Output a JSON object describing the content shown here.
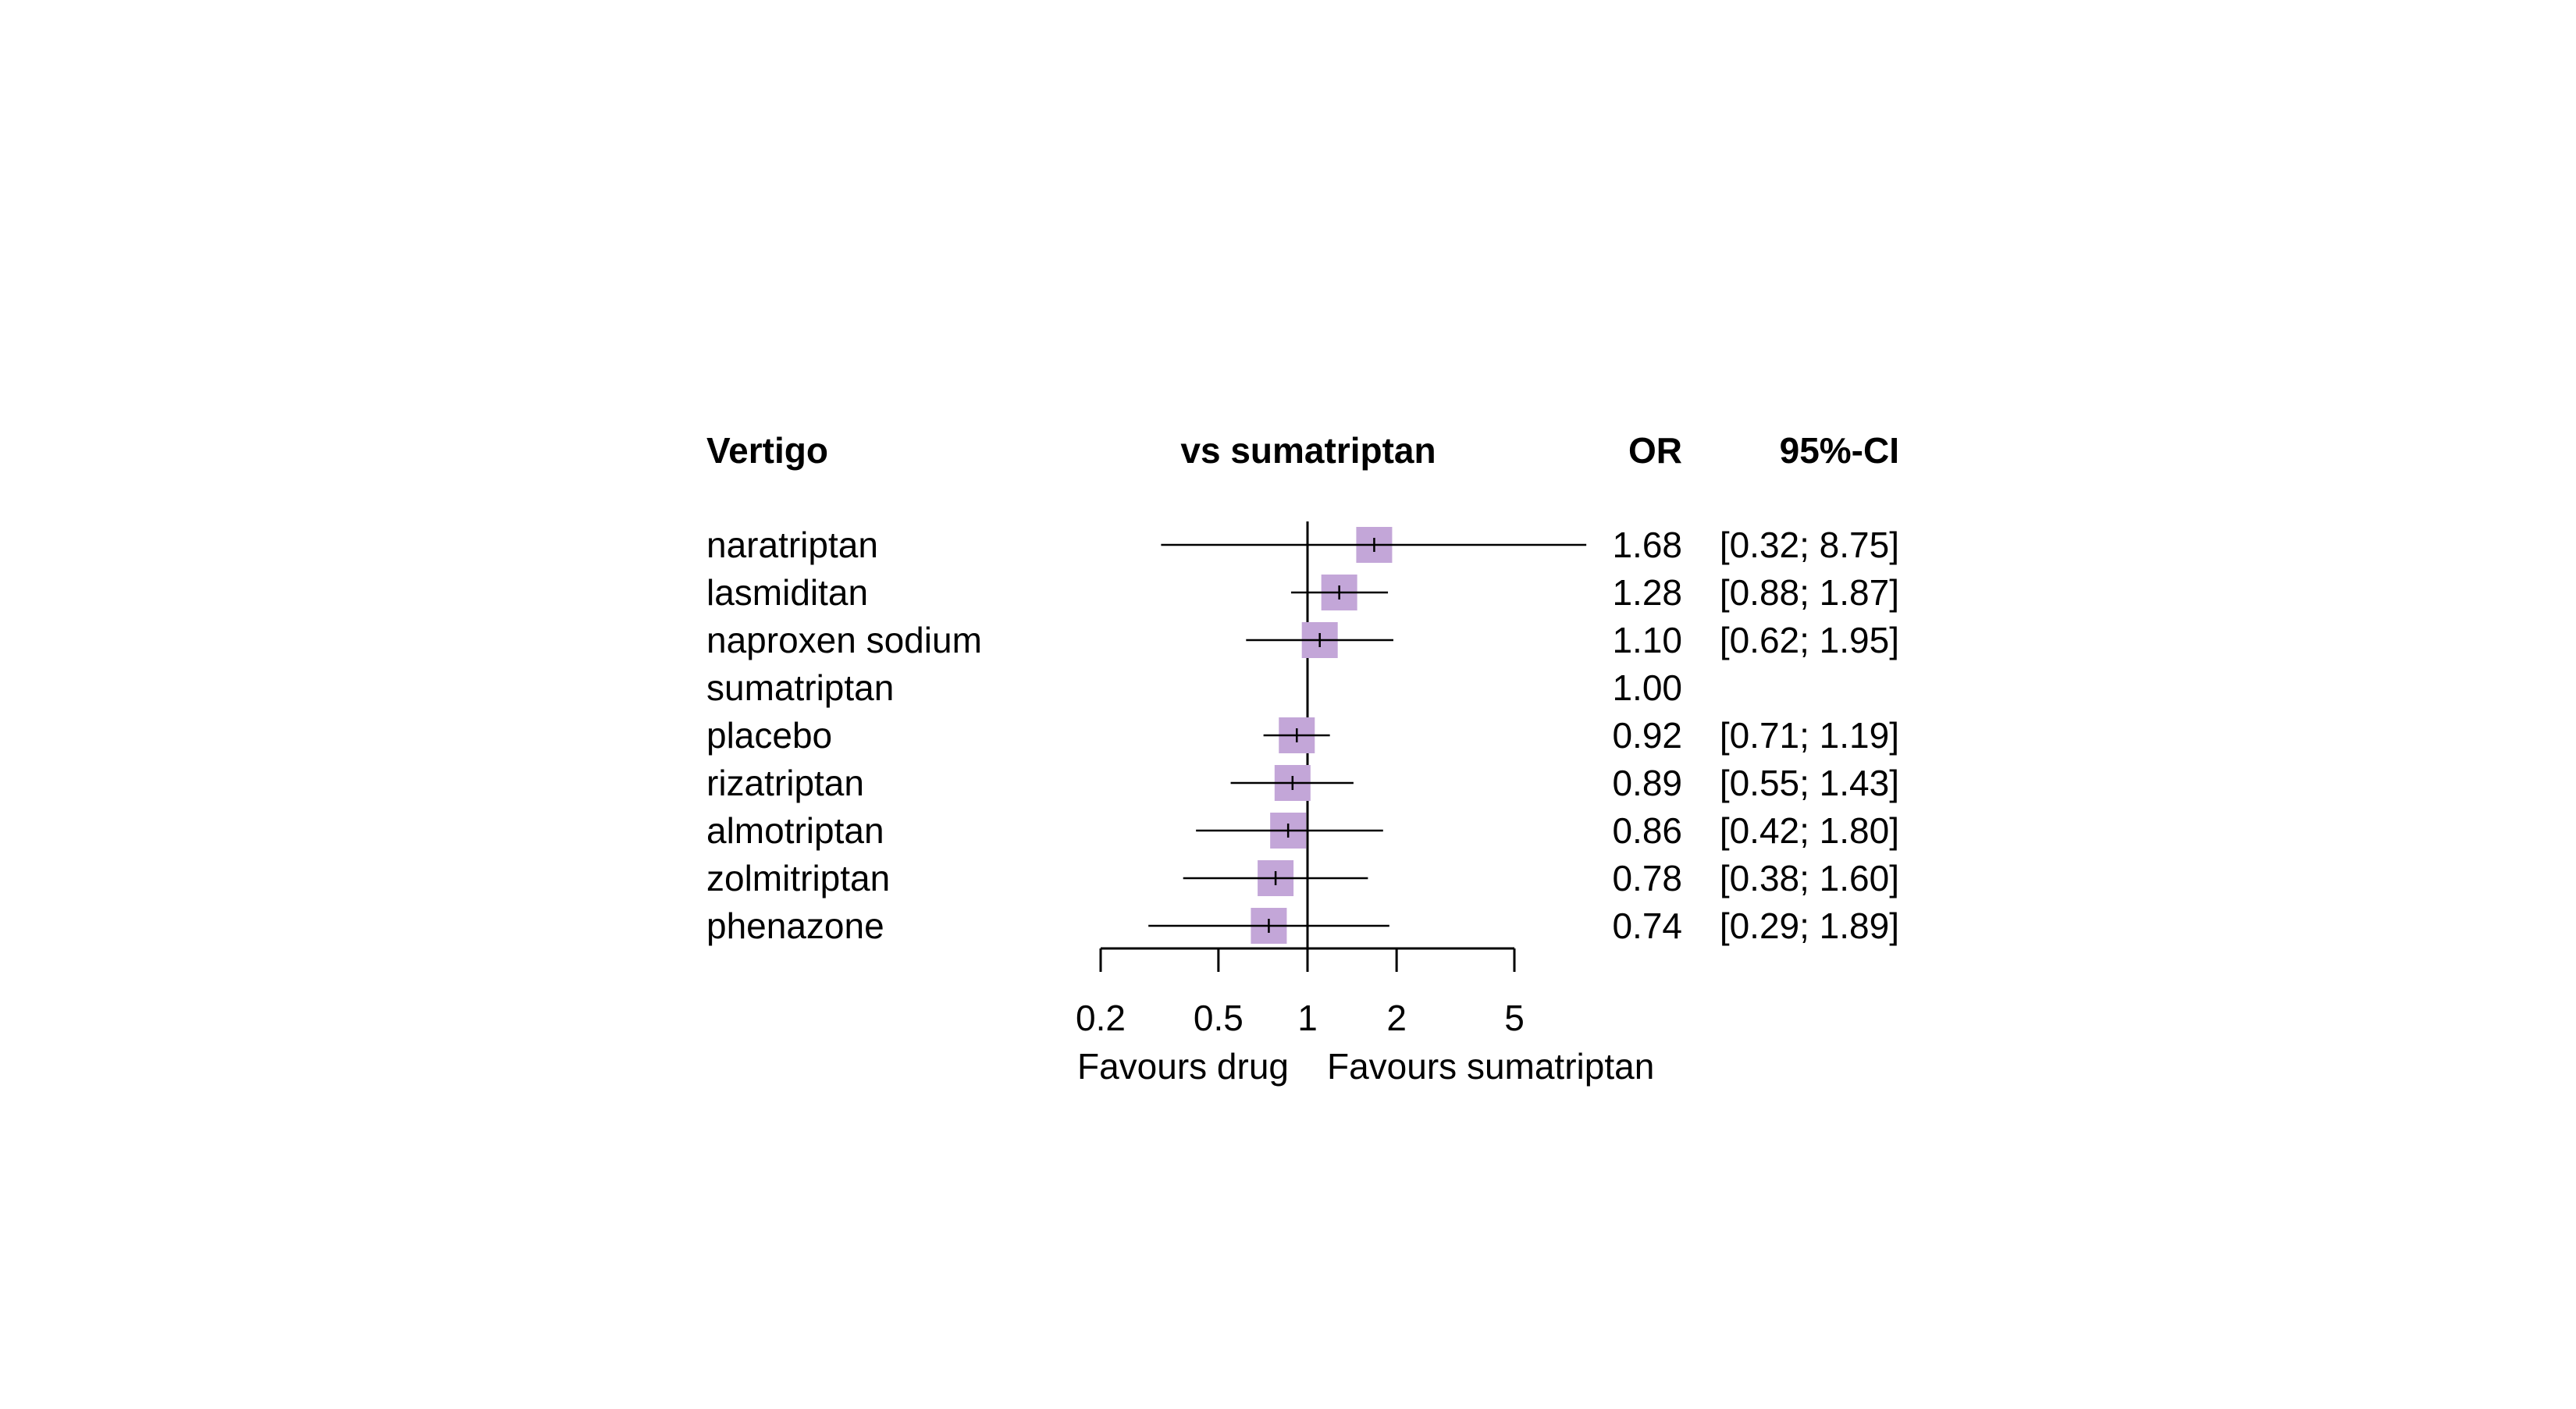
{
  "chart_data": {
    "type": "forest",
    "title": "Vertigo",
    "comparison_header": "vs sumatriptan",
    "or_header": "OR",
    "ci_header": "95%-CI",
    "scale": "log",
    "reference_value": 1,
    "xlim": [
      0.2,
      5
    ],
    "x_ticks": [
      "0.2",
      "0.5",
      "1",
      "2",
      "5"
    ],
    "x_tick_values": [
      0.2,
      0.5,
      1,
      2,
      5
    ],
    "left_label": "Favours drug",
    "right_label": "Favours sumatriptan",
    "marker_color": "#c3a6d8",
    "rows": [
      {
        "label": "naratriptan",
        "or": 1.68,
        "lower": 0.32,
        "upper": 8.75,
        "or_text": "1.68",
        "ci_text": "[0.32; 8.75]"
      },
      {
        "label": "lasmiditan",
        "or": 1.28,
        "lower": 0.88,
        "upper": 1.87,
        "or_text": "1.28",
        "ci_text": "[0.88; 1.87]"
      },
      {
        "label": "naproxen sodium",
        "or": 1.1,
        "lower": 0.62,
        "upper": 1.95,
        "or_text": "1.10",
        "ci_text": "[0.62; 1.95]"
      },
      {
        "label": "sumatriptan",
        "or": 1.0,
        "lower": null,
        "upper": null,
        "or_text": "1.00",
        "ci_text": ""
      },
      {
        "label": "placebo",
        "or": 0.92,
        "lower": 0.71,
        "upper": 1.19,
        "or_text": "0.92",
        "ci_text": "[0.71; 1.19]"
      },
      {
        "label": "rizatriptan",
        "or": 0.89,
        "lower": 0.55,
        "upper": 1.43,
        "or_text": "0.89",
        "ci_text": "[0.55; 1.43]"
      },
      {
        "label": "almotriptan",
        "or": 0.86,
        "lower": 0.42,
        "upper": 1.8,
        "or_text": "0.86",
        "ci_text": "[0.42; 1.80]"
      },
      {
        "label": "zolmitriptan",
        "or": 0.78,
        "lower": 0.38,
        "upper": 1.6,
        "or_text": "0.78",
        "ci_text": "[0.38; 1.60]"
      },
      {
        "label": "phenazone",
        "or": 0.74,
        "lower": 0.29,
        "upper": 1.89,
        "or_text": "0.74",
        "ci_text": "[0.29; 1.89]"
      }
    ]
  }
}
